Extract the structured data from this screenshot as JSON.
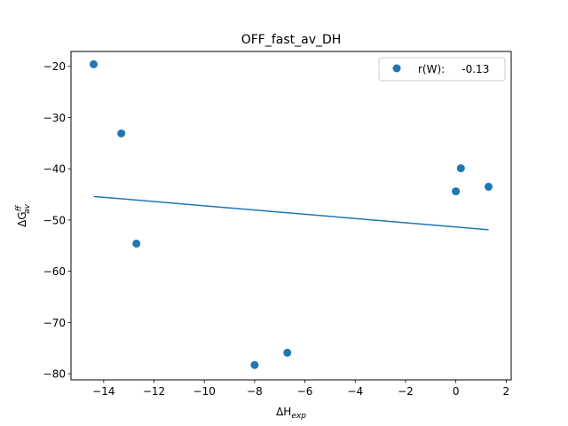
{
  "chart_data": {
    "type": "scatter",
    "title": "OFF_fast_av_DH",
    "xlabel": "ΔH_exp",
    "ylabel": "ΔG^ff_av",
    "xlim": [
      -15.3,
      2.2
    ],
    "ylim": [
      -81.2,
      -17.1
    ],
    "x_ticks": [
      -14,
      -12,
      -10,
      -8,
      -6,
      -4,
      -2,
      0,
      2
    ],
    "y_ticks": [
      -80,
      -70,
      -60,
      -50,
      -40,
      -30,
      -20
    ],
    "series": [
      {
        "name": "r(W):     -0.13",
        "color": "#1f77b4",
        "points": [
          {
            "x": -14.4,
            "y": -19.6
          },
          {
            "x": -13.3,
            "y": -33.1
          },
          {
            "x": -12.7,
            "y": -54.6
          },
          {
            "x": -8.0,
            "y": -78.3
          },
          {
            "x": -6.7,
            "y": -75.9
          },
          {
            "x": 0.0,
            "y": -44.4
          },
          {
            "x": 0.2,
            "y": -39.9
          },
          {
            "x": 1.3,
            "y": -43.5
          }
        ]
      }
    ],
    "fit_line": {
      "color": "#1f77b4",
      "x": [
        -14.4,
        1.3
      ],
      "y": [
        -45.4,
        -51.9
      ]
    },
    "grid": false,
    "legend_position": "top-right"
  }
}
